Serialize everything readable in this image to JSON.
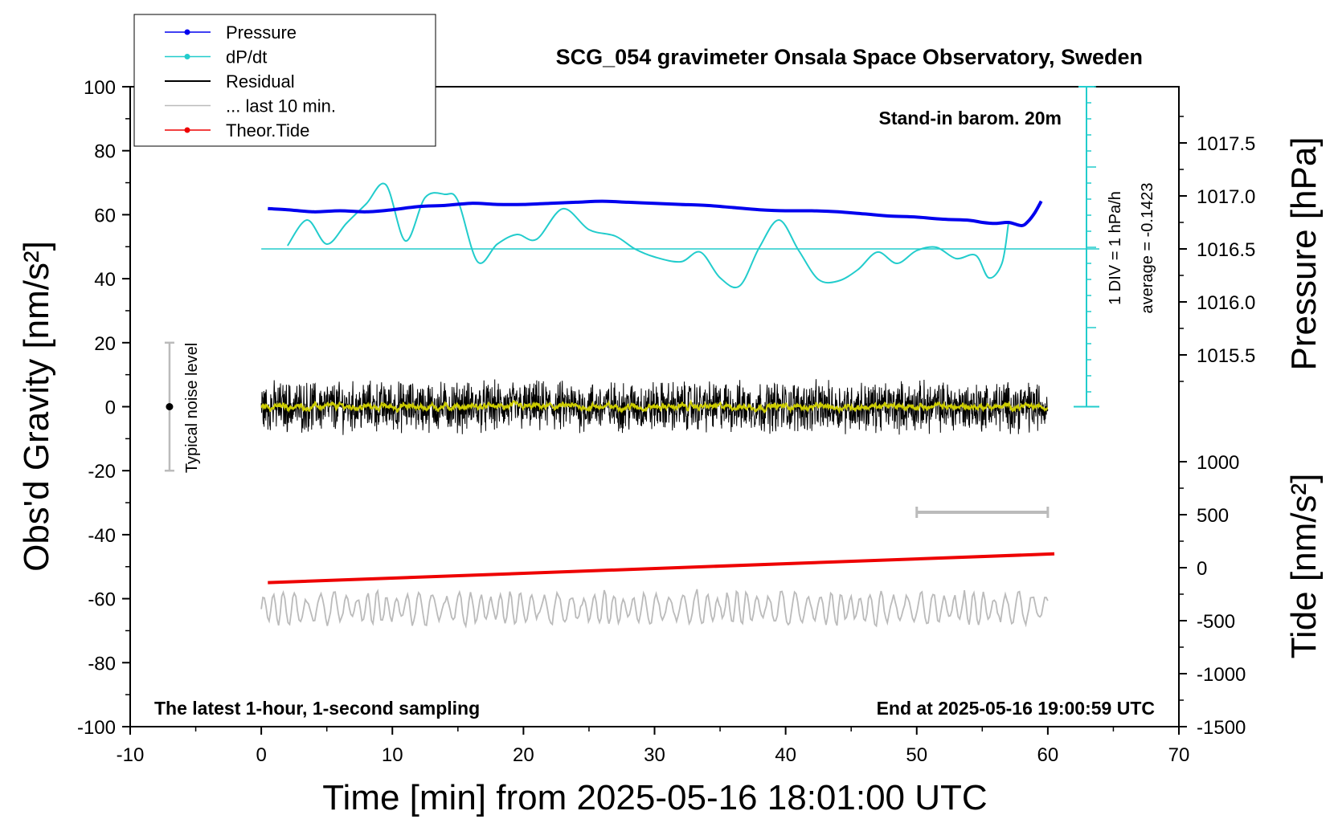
{
  "chart_data": {
    "type": "line",
    "title": "SCG_054 gravimeter Onsala Space Observatory, Sweden",
    "xlabel": "Time [min] from 2025-05-16 18:01:00 UTC",
    "ylabel": "Obs'd Gravity [nm/s²]",
    "y2label": "Pressure [hPa]",
    "y3label": "Tide [nm/s²]",
    "xlim": [
      -10,
      70
    ],
    "ylim": [
      -100,
      100
    ],
    "xticks": [
      "-10",
      "0",
      "10",
      "20",
      "30",
      "40",
      "50",
      "60",
      "70"
    ],
    "yticks": [
      "100",
      "80",
      "60",
      "40",
      "20",
      "0",
      "-20",
      "-40",
      "-60",
      "-80",
      "-100"
    ],
    "pressure_ticks": [
      "1017.5",
      "1017.0",
      "1016.5",
      "1016.0",
      "1015.5"
    ],
    "pressure_range": [
      1015.0,
      1018.0
    ],
    "tide_ticks": [
      "1000",
      "500",
      "0",
      "-500",
      "-1000",
      "-1500"
    ],
    "tide_range": [
      -1500,
      1000
    ],
    "legend_position": "top-left",
    "legend": [
      {
        "label": "Pressure",
        "color": "#0000ee",
        "marker": true
      },
      {
        "label": "dP/dt",
        "color": "#22cccc",
        "marker": true
      },
      {
        "label": "Residual",
        "color": "#000000",
        "marker": false
      },
      {
        "label": "... last 10 min.",
        "color": "#bbbbbb",
        "marker": false
      },
      {
        "label": "Theor.Tide",
        "color": "#ee0000",
        "marker": true
      }
    ],
    "annotations": {
      "barometer": "Stand-in barom. 20m",
      "div_note": "1 DIV = 1 hPa/h",
      "average_note": "average = -0.1423",
      "noise_label": "Typical noise level",
      "bottom_left": "The latest 1-hour, 1-second sampling",
      "bottom_right": "End at 2025-05-16 19:00:59 UTC"
    },
    "noise_range": [
      -20,
      20
    ],
    "last10_bar": {
      "x": [
        50,
        60
      ],
      "y": -33
    },
    "series": [
      {
        "name": "Pressure",
        "color": "#0000ee",
        "x": [
          0.5,
          2,
          4,
          6,
          8,
          10,
          12,
          14,
          16,
          18,
          20,
          22,
          24,
          26,
          28,
          30,
          32,
          34,
          36,
          38,
          40,
          42,
          44,
          46,
          48,
          50,
          52,
          54,
          55,
          56,
          57,
          58,
          58.5,
          59,
          59.5
        ],
        "values": [
          1016.88,
          1016.87,
          1016.85,
          1016.86,
          1016.85,
          1016.87,
          1016.9,
          1016.91,
          1016.93,
          1016.92,
          1016.92,
          1016.93,
          1016.94,
          1016.95,
          1016.94,
          1016.93,
          1016.92,
          1016.91,
          1016.89,
          1016.87,
          1016.86,
          1016.86,
          1016.85,
          1016.83,
          1016.81,
          1016.8,
          1016.78,
          1016.77,
          1016.75,
          1016.74,
          1016.75,
          1016.72,
          1016.76,
          1016.84,
          1016.95
        ]
      },
      {
        "name": "dP/dt",
        "color": "#22cccc",
        "x": [
          2,
          3.5,
          5,
          6.5,
          8,
          9.5,
          11,
          12.5,
          14,
          15,
          16.5,
          18,
          19.5,
          21,
          23,
          25,
          27,
          28.5,
          30,
          32,
          33.5,
          35,
          36.5,
          38,
          39.5,
          41,
          42.5,
          44,
          45.5,
          47,
          48.5,
          50,
          51.5,
          53,
          54.5,
          55.5,
          56.5,
          57
        ],
        "values": [
          0.2,
          1.8,
          0.3,
          1.6,
          2.8,
          4.0,
          0.5,
          3.2,
          3.4,
          3.0,
          -0.8,
          0.3,
          0.9,
          0.6,
          2.5,
          1.2,
          0.8,
          0.0,
          -0.5,
          -0.8,
          -0.2,
          -1.8,
          -2.3,
          0.1,
          1.8,
          -0.1,
          -1.9,
          -2.0,
          -1.3,
          -0.2,
          -0.9,
          -0.1,
          0.1,
          -0.6,
          -0.4,
          -1.8,
          -0.9,
          1.6
        ]
      },
      {
        "name": "Residual",
        "color": "#000000",
        "x": [
          0,
          60
        ],
        "values": [
          0,
          0
        ]
      },
      {
        "name": "Theor.Tide",
        "color": "#ee0000",
        "x": [
          0.5,
          60.5
        ],
        "values": [
          -55,
          -46
        ]
      },
      {
        "name": "... last 10 min.",
        "color": "#bbbbbb",
        "x": [
          0,
          60
        ],
        "values": [
          -63,
          -63
        ]
      }
    ]
  }
}
